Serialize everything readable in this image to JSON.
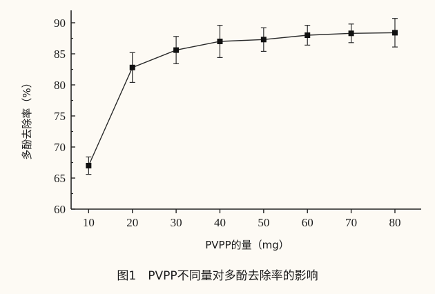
{
  "chart_data": {
    "type": "line",
    "x": [
      10,
      20,
      30,
      40,
      50,
      60,
      70,
      80
    ],
    "series": [
      {
        "values": [
          67.0,
          82.8,
          85.6,
          87.0,
          87.3,
          88.0,
          88.3,
          88.4
        ],
        "errors": [
          1.4,
          2.4,
          2.2,
          2.6,
          1.9,
          1.6,
          1.5,
          2.3
        ]
      }
    ],
    "xlabel": "PVPP的量（mg）",
    "ylabel": "多酚去除率（%）",
    "xlim": [
      6,
      86
    ],
    "ylim": [
      60,
      92
    ],
    "xticks": [
      10,
      20,
      30,
      40,
      50,
      60,
      70,
      80
    ],
    "yticks": [
      60,
      65,
      70,
      75,
      80,
      85,
      90
    ],
    "grid": false,
    "marker": "square",
    "colors": {
      "line": "#2a2a2a",
      "marker": "#111111",
      "axis": "#222222"
    }
  },
  "caption": "图1　PVPP不同量对多酚去除率的影响"
}
